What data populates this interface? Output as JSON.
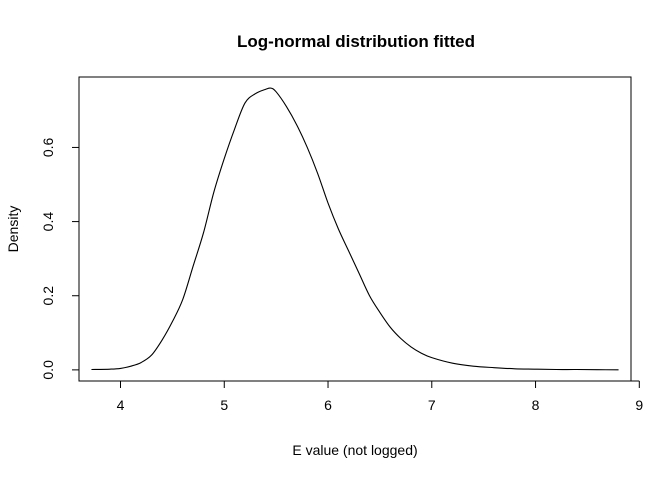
{
  "chart_data": {
    "type": "line",
    "title": "Log-normal distribution fitted",
    "xlabel": "E value (not logged)",
    "ylabel": "Density",
    "xlim": [
      3.6,
      8.92
    ],
    "ylim": [
      -0.03,
      0.79
    ],
    "x_ticks": [
      4,
      5,
      6,
      7,
      8,
      9
    ],
    "x_tick_labels": [
      "4",
      "5",
      "6",
      "7",
      "8",
      "9"
    ],
    "y_ticks": [
      0.0,
      0.2,
      0.4,
      0.6
    ],
    "y_tick_labels": [
      "0.0",
      "0.2",
      "0.4",
      "0.6"
    ],
    "grid": false,
    "legend": "none",
    "series": [
      {
        "x": [
          3.72,
          3.9,
          4.0,
          4.1,
          4.2,
          4.3,
          4.4,
          4.5,
          4.6,
          4.7,
          4.8,
          4.9,
          5.0,
          5.1,
          5.2,
          5.3,
          5.4,
          5.45,
          5.5,
          5.6,
          5.7,
          5.8,
          5.9,
          6.0,
          6.1,
          6.2,
          6.3,
          6.4,
          6.5,
          6.6,
          6.7,
          6.8,
          6.9,
          7.0,
          7.2,
          7.4,
          7.6,
          7.8,
          8.0,
          8.2,
          8.4,
          8.6,
          8.8
        ],
        "y": [
          0.001,
          0.002,
          0.004,
          0.01,
          0.02,
          0.04,
          0.08,
          0.13,
          0.19,
          0.28,
          0.37,
          0.48,
          0.57,
          0.65,
          0.72,
          0.745,
          0.757,
          0.76,
          0.75,
          0.71,
          0.66,
          0.6,
          0.53,
          0.45,
          0.38,
          0.32,
          0.26,
          0.2,
          0.155,
          0.115,
          0.085,
          0.062,
          0.045,
          0.033,
          0.018,
          0.01,
          0.006,
          0.003,
          0.002,
          0.001,
          0.001,
          0.0005,
          0.0002
        ]
      }
    ]
  }
}
